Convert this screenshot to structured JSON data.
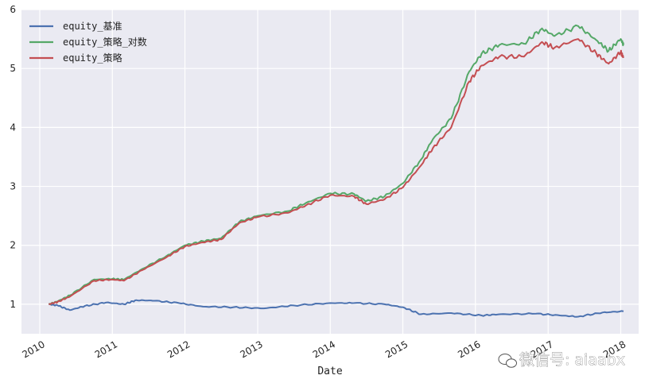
{
  "chart_data": {
    "type": "line",
    "xlabel": "Date",
    "ylabel": "",
    "ylim": [
      0.5,
      6.0
    ],
    "xlim": [
      "2009-10-01",
      "2018-04-01"
    ],
    "yticks": [
      "1",
      "2",
      "3",
      "4",
      "5",
      "6"
    ],
    "xticks": [
      "2010",
      "2011",
      "2012",
      "2013",
      "2014",
      "2015",
      "2016",
      "2017",
      "2018"
    ],
    "grid": true,
    "background": "#EAEAF2",
    "legend_position": "top-left",
    "series": [
      {
        "name": "equity_基准",
        "color": "#4C72B0",
        "x": [
          "2010-02-15",
          "2010-04-01",
          "2010-06-01",
          "2010-08-15",
          "2010-12-01",
          "2011-03-01",
          "2011-05-01",
          "2011-08-01",
          "2011-12-01",
          "2012-04-01",
          "2012-09-01",
          "2013-02-01",
          "2013-07-01",
          "2014-01-01",
          "2014-05-01",
          "2014-10-01",
          "2015-01-01",
          "2015-04-01",
          "2015-09-01",
          "2016-02-01",
          "2016-05-01",
          "2016-11-01",
          "2017-03-01",
          "2017-06-01",
          "2017-10-01",
          "2018-01-15"
        ],
        "y": [
          1.0,
          0.98,
          0.9,
          0.97,
          1.03,
          1.0,
          1.07,
          1.06,
          1.02,
          0.96,
          0.95,
          0.93,
          0.98,
          1.02,
          1.02,
          1.0,
          0.95,
          0.83,
          0.85,
          0.81,
          0.83,
          0.84,
          0.81,
          0.79,
          0.86,
          0.88
        ]
      },
      {
        "name": "equity_策略_对数",
        "color": "#55A868",
        "x": [
          "2010-02-15",
          "2010-04-01",
          "2010-06-01",
          "2010-10-01",
          "2011-01-01",
          "2011-03-01",
          "2011-06-01",
          "2011-10-01",
          "2012-01-01",
          "2012-04-01",
          "2012-07-01",
          "2012-10-01",
          "2013-01-01",
          "2013-06-01",
          "2013-09-01",
          "2014-01-01",
          "2014-05-01",
          "2014-07-01",
          "2014-10-01",
          "2015-01-01",
          "2015-04-01",
          "2015-06-01",
          "2015-09-01",
          "2015-12-01",
          "2016-02-01",
          "2016-05-01",
          "2016-09-01",
          "2016-12-01",
          "2017-02-01",
          "2017-06-01",
          "2017-09-01",
          "2017-11-01",
          "2018-01-01",
          "2018-01-15"
        ],
        "y": [
          1.0,
          1.05,
          1.15,
          1.42,
          1.43,
          1.42,
          1.6,
          1.82,
          2.0,
          2.07,
          2.12,
          2.4,
          2.5,
          2.58,
          2.72,
          2.88,
          2.87,
          2.75,
          2.83,
          3.05,
          3.45,
          3.8,
          4.15,
          4.95,
          5.25,
          5.4,
          5.42,
          5.68,
          5.55,
          5.72,
          5.48,
          5.3,
          5.5,
          5.4
        ]
      },
      {
        "name": "equity_策略",
        "color": "#C44E52",
        "x": [
          "2010-02-15",
          "2010-04-01",
          "2010-06-01",
          "2010-10-01",
          "2011-01-01",
          "2011-03-01",
          "2011-06-01",
          "2011-10-01",
          "2012-01-01",
          "2012-04-01",
          "2012-07-01",
          "2012-10-01",
          "2013-01-01",
          "2013-06-01",
          "2013-09-01",
          "2014-01-01",
          "2014-05-01",
          "2014-07-01",
          "2014-10-01",
          "2015-01-01",
          "2015-04-01",
          "2015-06-01",
          "2015-09-01",
          "2015-12-01",
          "2016-02-01",
          "2016-05-01",
          "2016-09-01",
          "2016-12-01",
          "2017-02-01",
          "2017-06-01",
          "2017-09-01",
          "2017-11-01",
          "2018-01-01",
          "2018-01-15"
        ],
        "y": [
          1.0,
          1.04,
          1.13,
          1.4,
          1.42,
          1.4,
          1.58,
          1.8,
          1.98,
          2.05,
          2.1,
          2.38,
          2.48,
          2.55,
          2.68,
          2.85,
          2.83,
          2.7,
          2.78,
          2.98,
          3.35,
          3.65,
          4.0,
          4.78,
          5.05,
          5.2,
          5.2,
          5.45,
          5.35,
          5.5,
          5.25,
          5.08,
          5.28,
          5.18
        ]
      }
    ]
  },
  "watermark": "微信号: aiaabx"
}
